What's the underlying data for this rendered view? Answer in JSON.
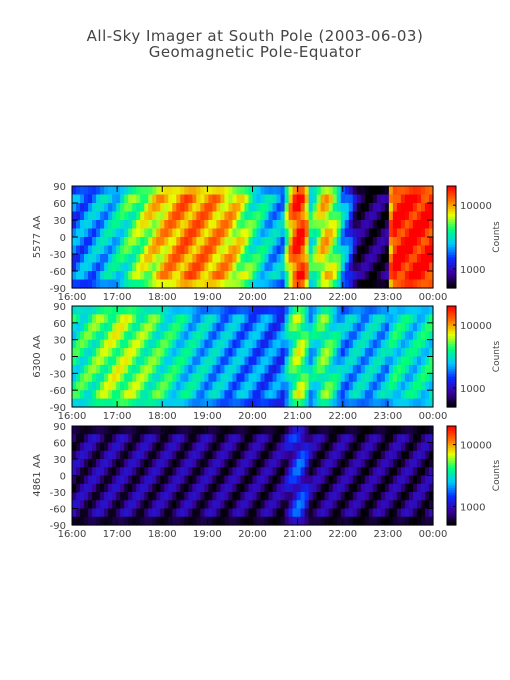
{
  "title": "All-Sky Imager at South Pole (2003-06-03)",
  "subtitle": "Geomagnetic Pole-Equator",
  "chart_data": [
    {
      "type": "heatmap",
      "ylabel": "5577 AA",
      "x_ticks": [
        "16:00",
        "17:00",
        "18:00",
        "19:00",
        "20:00",
        "21:00",
        "22:00",
        "23:00",
        "00:00"
      ],
      "y_ticks": [
        "90",
        "60",
        "30",
        "0",
        "-30",
        "-60",
        "-90"
      ],
      "colorbar_label": "Counts",
      "colorbar_ticks": [
        "10000",
        "1000"
      ],
      "colorbar_range": [
        500,
        20000
      ],
      "color_scale": "log",
      "colormap": [
        "#000000",
        "#3a00a0",
        "#0a2cff",
        "#00c8ff",
        "#00ff7a",
        "#e8ff00",
        "#ff7000",
        "#ff0000"
      ],
      "profile_x_hours": [
        16.0,
        16.5,
        17.0,
        17.5,
        18.0,
        18.5,
        19.0,
        19.5,
        20.0,
        20.4,
        20.7,
        21.0,
        21.1,
        21.3,
        21.6,
        21.8,
        22.0,
        22.3,
        22.7,
        23.0,
        23.1,
        23.5,
        24.0
      ],
      "profile_counts": [
        1800,
        2200,
        3000,
        5500,
        9000,
        12000,
        11000,
        9000,
        4000,
        2500,
        2200,
        18000,
        16000,
        3000,
        9000,
        6000,
        2500,
        700,
        700,
        700,
        18000,
        20000,
        18000
      ]
    },
    {
      "type": "heatmap",
      "ylabel": "6300 AA",
      "x_ticks": [
        "16:00",
        "17:00",
        "18:00",
        "19:00",
        "20:00",
        "21:00",
        "22:00",
        "23:00",
        "00:00"
      ],
      "y_ticks": [
        "90",
        "60",
        "30",
        "0",
        "-30",
        "-60",
        "-90"
      ],
      "colorbar_label": "Counts",
      "colorbar_ticks": [
        "10000",
        "1000"
      ],
      "colorbar_range": [
        500,
        20000
      ],
      "color_scale": "log",
      "colormap": [
        "#000000",
        "#3a00a0",
        "#0a2cff",
        "#00c8ff",
        "#00ff7a",
        "#e8ff00",
        "#ff7000",
        "#ff0000"
      ],
      "profile_x_hours": [
        16.0,
        16.5,
        17.0,
        17.5,
        18.0,
        18.5,
        19.0,
        19.5,
        20.0,
        20.4,
        20.7,
        21.0,
        21.1,
        21.3,
        21.6,
        21.8,
        22.0,
        22.3,
        22.7,
        23.0,
        23.1,
        23.5,
        24.0
      ],
      "profile_counts": [
        3500,
        4500,
        6000,
        5000,
        4000,
        3000,
        2500,
        2200,
        2000,
        1800,
        1800,
        6000,
        5500,
        2500,
        5000,
        3500,
        2200,
        2500,
        2500,
        2500,
        3500,
        3000,
        3500
      ]
    },
    {
      "type": "heatmap",
      "ylabel": "4861 AA",
      "x_ticks": [
        "16:00",
        "17:00",
        "18:00",
        "19:00",
        "20:00",
        "21:00",
        "22:00",
        "23:00",
        "00:00"
      ],
      "y_ticks": [
        "90",
        "60",
        "30",
        "0",
        "-30",
        "-60",
        "-90"
      ],
      "colorbar_label": "Counts",
      "colorbar_ticks": [
        "10000",
        "1000"
      ],
      "colorbar_range": [
        500,
        20000
      ],
      "color_scale": "log",
      "colormap": [
        "#000000",
        "#3a00a0",
        "#0a2cff",
        "#00c8ff",
        "#00ff7a",
        "#e8ff00",
        "#ff7000",
        "#ff0000"
      ],
      "profile_x_hours": [
        16.0,
        16.5,
        17.0,
        17.5,
        18.0,
        18.5,
        19.0,
        19.5,
        20.0,
        20.4,
        20.7,
        21.0,
        21.1,
        21.3,
        21.6,
        21.8,
        22.0,
        22.3,
        22.7,
        23.0,
        23.1,
        23.5,
        24.0
      ],
      "profile_counts": [
        800,
        800,
        800,
        800,
        780,
        780,
        780,
        760,
        760,
        760,
        760,
        1500,
        1400,
        760,
        760,
        760,
        760,
        740,
        740,
        740,
        760,
        760,
        760
      ]
    }
  ]
}
